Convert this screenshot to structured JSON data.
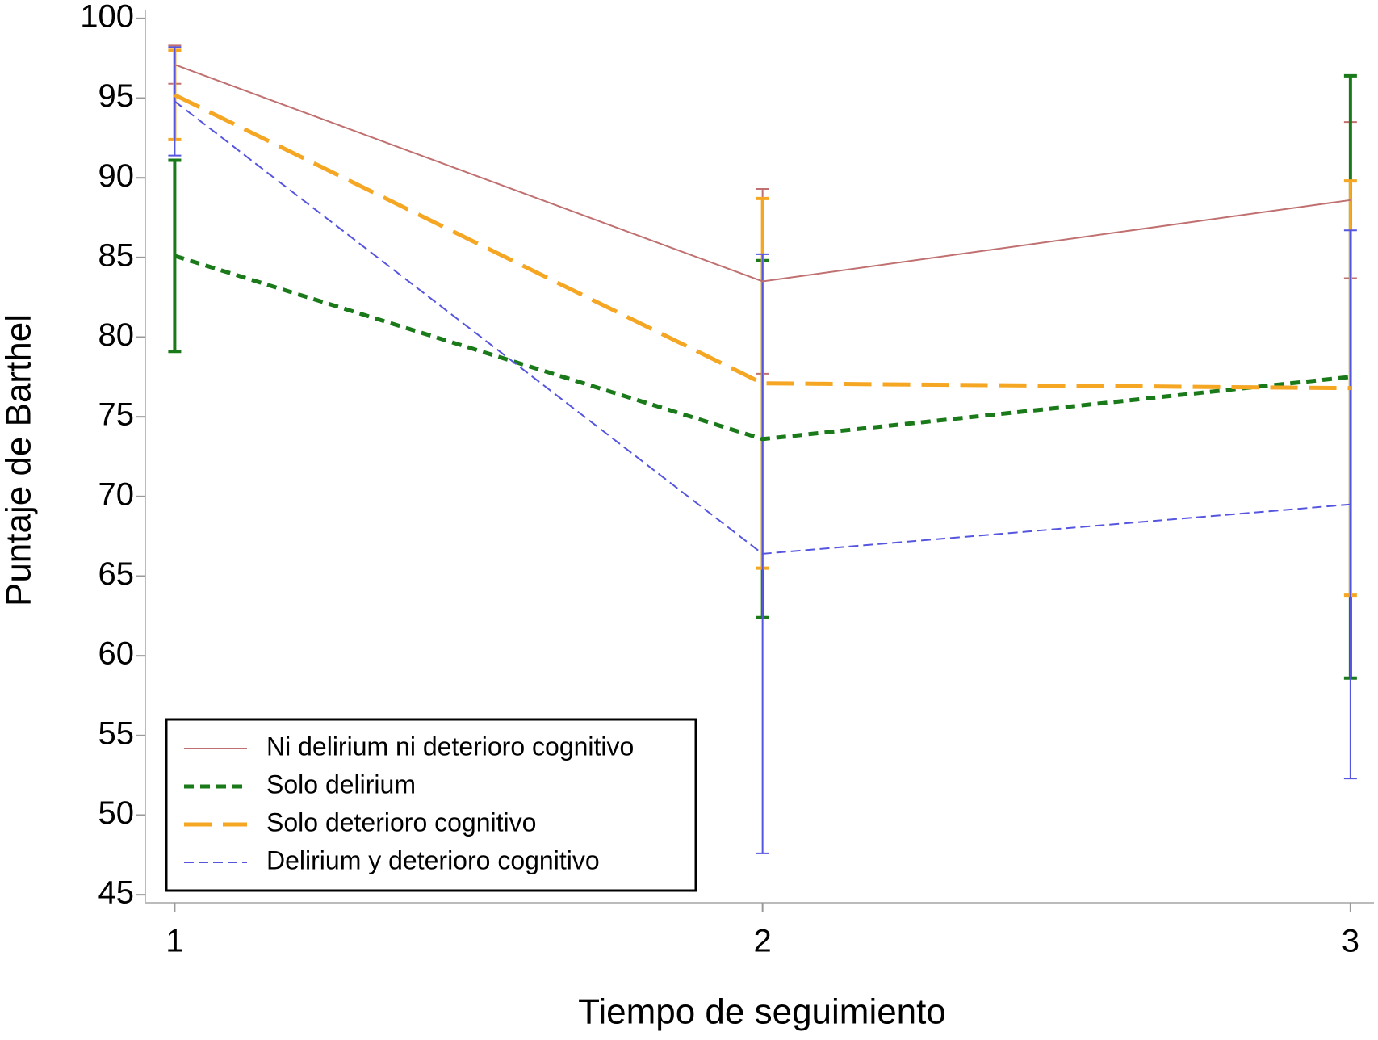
{
  "chart_data": {
    "type": "line",
    "x_label": "Tiempo de seguimiento",
    "y_label": "Puntaje de Barthel",
    "x": [
      1,
      2,
      3
    ],
    "xlim": [
      0.95,
      3.04
    ],
    "xticks": [
      1,
      2,
      3
    ],
    "ylim": [
      44.5,
      100.5
    ],
    "yticks": [
      45,
      50,
      55,
      60,
      65,
      70,
      75,
      80,
      85,
      90,
      95,
      100
    ],
    "legend": "lower-left",
    "series": [
      {
        "name": "Ni delirium ni deterioro cognitivo",
        "color": "#c07070",
        "values": [
          97.1,
          83.5,
          88.6
        ],
        "errors": [
          1.2,
          5.8,
          4.9
        ]
      },
      {
        "name": "Solo delirium",
        "color": "#1a7a1a",
        "values": [
          85.1,
          73.6,
          77.5
        ],
        "errors": [
          6.0,
          11.2,
          18.9
        ]
      },
      {
        "name": "Solo deterioro cognitivo",
        "color": "#f5a623",
        "values": [
          95.2,
          77.1,
          76.8
        ],
        "errors": [
          2.8,
          11.6,
          13.0
        ]
      },
      {
        "name": "Delirium y deterioro cognitivo",
        "color": "#5555e0",
        "values": [
          94.8,
          66.4,
          69.5
        ],
        "errors": [
          3.4,
          18.8,
          17.2
        ]
      }
    ]
  }
}
